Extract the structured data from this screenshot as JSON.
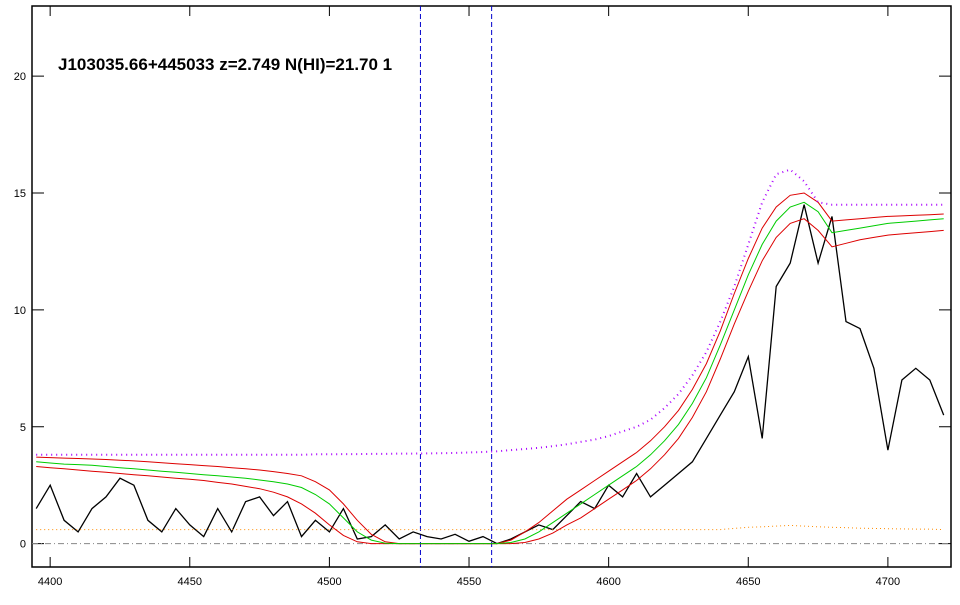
{
  "chart_data": {
    "type": "line",
    "title": "J103035.66+445033 z=2.749 N(HI)=21.70 1",
    "x": [
      4395,
      4400,
      4405,
      4410,
      4415,
      4420,
      4425,
      4430,
      4435,
      4440,
      4445,
      4450,
      4455,
      4460,
      4465,
      4470,
      4475,
      4480,
      4485,
      4490,
      4495,
      4500,
      4505,
      4510,
      4515,
      4520,
      4525,
      4530,
      4535,
      4540,
      4545,
      4550,
      4555,
      4560,
      4565,
      4570,
      4575,
      4580,
      4585,
      4590,
      4595,
      4600,
      4605,
      4610,
      4615,
      4620,
      4625,
      4630,
      4635,
      4640,
      4645,
      4650,
      4655,
      4660,
      4665,
      4670,
      4675,
      4680,
      4685,
      4690,
      4695,
      4700,
      4705,
      4710,
      4715,
      4720
    ],
    "series": [
      {
        "color": "#000000",
        "dash": "none",
        "width": 1.3,
        "values": [
          1.5,
          2.5,
          1.0,
          0.5,
          1.5,
          2.0,
          2.8,
          2.5,
          1.0,
          0.5,
          1.5,
          0.8,
          0.3,
          1.5,
          0.5,
          1.8,
          2.0,
          1.2,
          1.8,
          0.3,
          1.0,
          0.5,
          1.5,
          0.2,
          0.3,
          0.8,
          0.2,
          0.5,
          0.3,
          0.2,
          0.4,
          0.1,
          0.3,
          0.0,
          0.2,
          0.5,
          0.8,
          0.6,
          1.2,
          1.8,
          1.5,
          2.5,
          2.0,
          3.0,
          2.0,
          2.5,
          3.0,
          3.5,
          4.5,
          5.5,
          6.5,
          8.0,
          4.5,
          11,
          12,
          14.5,
          12,
          14,
          9.5,
          9.2,
          7.5,
          4.0,
          7.0,
          7.5,
          7.0,
          5.5
        ]
      },
      {
        "color": "#ff8c00",
        "dash": "1 3",
        "width": 1,
        "values": [
          0.6,
          0.6,
          0.6,
          0.6,
          0.6,
          0.6,
          0.6,
          0.6,
          0.6,
          0.6,
          0.6,
          0.6,
          0.6,
          0.6,
          0.6,
          0.6,
          0.6,
          0.6,
          0.6,
          0.6,
          0.6,
          0.6,
          0.6,
          0.6,
          0.6,
          0.6,
          0.6,
          0.6,
          0.6,
          0.6,
          0.6,
          0.6,
          0.6,
          0.6,
          0.6,
          0.6,
          0.6,
          0.6,
          0.6,
          0.6,
          0.6,
          0.6,
          0.6,
          0.6,
          0.6,
          0.6,
          0.6,
          0.6,
          0.6,
          0.6,
          0.65,
          0.7,
          0.72,
          0.75,
          0.78,
          0.75,
          0.72,
          0.7,
          0.68,
          0.66,
          0.65,
          0.64,
          0.63,
          0.62,
          0.62,
          0.6
        ]
      },
      {
        "color": "#dd0000",
        "dash": "none",
        "width": 1,
        "values": [
          3.7,
          3.68,
          3.66,
          3.64,
          3.62,
          3.6,
          3.57,
          3.54,
          3.5,
          3.46,
          3.42,
          3.38,
          3.34,
          3.3,
          3.25,
          3.2,
          3.15,
          3.08,
          3.0,
          2.9,
          2.65,
          2.3,
          1.7,
          1.0,
          0.4,
          0.08,
          0,
          0,
          0,
          0,
          0,
          0,
          0,
          0,
          0.15,
          0.5,
          0.9,
          1.4,
          1.9,
          2.3,
          2.7,
          3.1,
          3.5,
          3.9,
          4.4,
          5.0,
          5.7,
          6.6,
          7.7,
          9.1,
          10.7,
          12.2,
          13.5,
          14.4,
          14.9,
          15.0,
          14.6,
          13.8,
          13.85,
          13.9,
          13.95,
          14.0,
          14.02,
          14.05,
          14.07,
          14.1
        ]
      },
      {
        "color": "#dd0000",
        "dash": "none",
        "width": 1,
        "values": [
          3.3,
          3.25,
          3.2,
          3.15,
          3.1,
          3.05,
          3.0,
          2.95,
          2.9,
          2.85,
          2.8,
          2.75,
          2.7,
          2.62,
          2.55,
          2.45,
          2.35,
          2.2,
          2.0,
          1.7,
          1.3,
          0.8,
          0.35,
          0.08,
          0,
          0,
          0,
          0,
          0,
          0,
          0,
          0,
          0,
          0,
          0,
          0.05,
          0.2,
          0.45,
          0.8,
          1.1,
          1.5,
          1.9,
          2.3,
          2.7,
          3.2,
          3.8,
          4.5,
          5.4,
          6.5,
          7.9,
          9.4,
          10.8,
          12.1,
          13.1,
          13.7,
          13.9,
          13.4,
          12.7,
          12.85,
          13.0,
          13.1,
          13.2,
          13.25,
          13.3,
          13.35,
          13.4
        ]
      },
      {
        "color": "#00cc00",
        "dash": "none",
        "width": 1,
        "values": [
          3.5,
          3.45,
          3.4,
          3.38,
          3.35,
          3.3,
          3.25,
          3.2,
          3.15,
          3.1,
          3.05,
          3.0,
          2.95,
          2.9,
          2.85,
          2.8,
          2.72,
          2.65,
          2.55,
          2.4,
          2.1,
          1.7,
          1.1,
          0.5,
          0.15,
          0.02,
          0,
          0,
          0,
          0,
          0,
          0,
          0,
          0,
          0.05,
          0.2,
          0.5,
          0.9,
          1.3,
          1.7,
          2.1,
          2.5,
          2.9,
          3.3,
          3.8,
          4.4,
          5.1,
          6.0,
          7.1,
          8.5,
          10.0,
          11.5,
          12.8,
          13.8,
          14.4,
          14.6,
          14.2,
          13.3,
          13.4,
          13.5,
          13.6,
          13.7,
          13.75,
          13.8,
          13.85,
          13.9
        ]
      },
      {
        "color": "#aa00ff",
        "dash": "1 4",
        "width": 2,
        "values": [
          3.8,
          3.8,
          3.8,
          3.8,
          3.8,
          3.8,
          3.8,
          3.8,
          3.8,
          3.8,
          3.8,
          3.8,
          3.8,
          3.8,
          3.8,
          3.8,
          3.8,
          3.8,
          3.8,
          3.8,
          3.82,
          3.82,
          3.83,
          3.83,
          3.84,
          3.84,
          3.85,
          3.85,
          3.86,
          3.87,
          3.88,
          3.9,
          3.92,
          3.95,
          4.0,
          4.05,
          4.1,
          4.17,
          4.25,
          4.35,
          4.45,
          4.6,
          4.8,
          5.0,
          5.3,
          5.8,
          6.4,
          7.2,
          8.2,
          9.5,
          11.0,
          12.8,
          14.6,
          15.8,
          16.0,
          15.5,
          14.6,
          14.5,
          14.5,
          14.5,
          14.5,
          14.5,
          14.5,
          14.5,
          14.5,
          14.5
        ]
      }
    ],
    "zero_line": 0,
    "zero_line_color": "#888888",
    "vlines": [
      4532.6,
      4558.1
    ],
    "vline_color": "#0000cc",
    "xlim": [
      4393.5,
      4722.6
    ],
    "ylim": [
      -1,
      23
    ],
    "xticks": [
      4400,
      4450,
      4500,
      4550,
      4600,
      4650,
      4700
    ],
    "yticks": [
      0,
      5,
      10,
      15,
      20
    ]
  }
}
